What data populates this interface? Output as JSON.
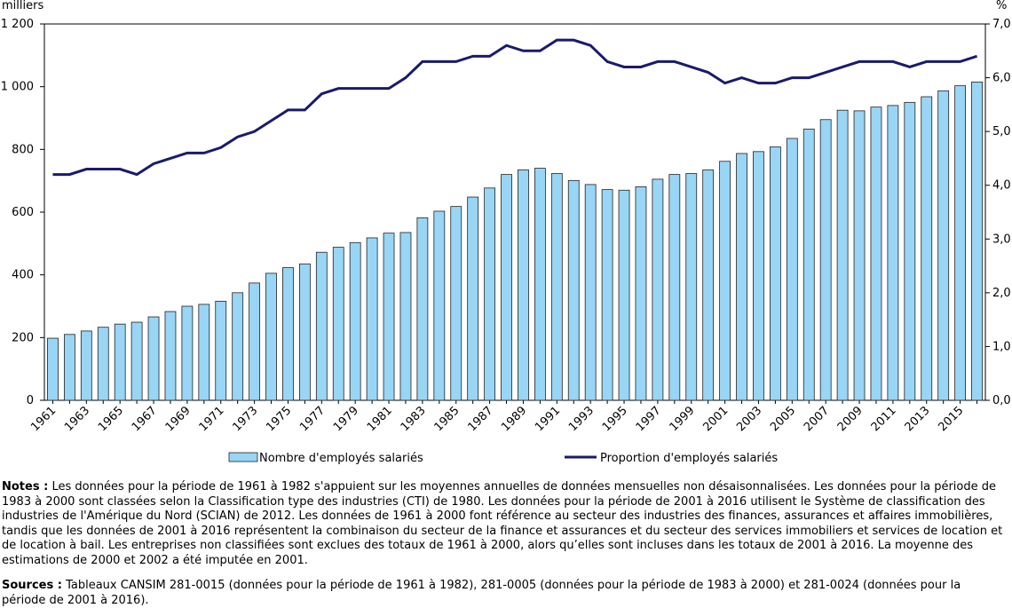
{
  "chart_data": {
    "type": "bar",
    "ylabel": "milliers",
    "y2label": "%",
    "categories": [
      "1961",
      null,
      "1963",
      null,
      "1965",
      null,
      "1967",
      null,
      "1969",
      null,
      "1971",
      null,
      "1973",
      null,
      "1975",
      null,
      "1977",
      null,
      "1979",
      null,
      "1981",
      null,
      "1983",
      null,
      "1985",
      null,
      "1987",
      null,
      "1989",
      null,
      "1991",
      null,
      "1993",
      null,
      "1995",
      null,
      "1997",
      null,
      "1999",
      null,
      "2001",
      null,
      "2003",
      null,
      "2005",
      null,
      "2007",
      null,
      "2009",
      null,
      "2011",
      null,
      "2013",
      null,
      "2015",
      null
    ],
    "series": [
      {
        "name": "Nombre d'employés salariés",
        "type": "bar",
        "axis": "y",
        "color": "#99d5f5",
        "values": [
          198,
          210,
          221,
          233,
          243,
          249,
          266,
          283,
          300,
          306,
          316,
          343,
          374,
          405,
          423,
          435,
          472,
          488,
          503,
          518,
          533,
          535,
          582,
          603,
          618,
          648,
          677,
          720,
          735,
          740,
          723,
          701,
          688,
          672,
          670,
          681,
          705,
          720,
          723,
          735,
          762,
          787,
          793,
          808,
          835,
          865,
          895,
          925,
          923,
          935,
          940,
          950,
          968,
          987,
          1003,
          1015
        ]
      },
      {
        "name": "Proportion d'employés salariés",
        "type": "line",
        "axis": "y2",
        "color": "#1a1a6e",
        "values": [
          4.2,
          4.2,
          4.3,
          4.3,
          4.3,
          4.2,
          4.4,
          4.5,
          4.6,
          4.6,
          4.7,
          4.9,
          5.0,
          5.2,
          5.4,
          5.4,
          5.7,
          5.8,
          5.8,
          5.8,
          5.8,
          6.0,
          6.3,
          6.3,
          6.3,
          6.4,
          6.4,
          6.6,
          6.5,
          6.5,
          6.7,
          6.7,
          6.6,
          6.3,
          6.2,
          6.2,
          6.3,
          6.3,
          6.2,
          6.1,
          5.9,
          6.0,
          5.9,
          5.9,
          6.0,
          6.0,
          6.1,
          6.2,
          6.3,
          6.3,
          6.3,
          6.2,
          6.3,
          6.3,
          6.3,
          6.4
        ]
      }
    ],
    "ylim": [
      0,
      1200
    ],
    "yticks": [
      0,
      200,
      400,
      600,
      800,
      {
        "value": 1000,
        "label": "1 000"
      },
      {
        "value": 1200,
        "label": "1 200"
      }
    ],
    "y2lim": [
      0,
      7
    ],
    "y2ticks": [
      {
        "value": 0,
        "label": "0,0"
      },
      {
        "value": 1,
        "label": "1,0"
      },
      {
        "value": 2,
        "label": "2,0"
      },
      {
        "value": 3,
        "label": "3,0"
      },
      {
        "value": 4,
        "label": "4,0"
      },
      {
        "value": 5,
        "label": "5,0"
      },
      {
        "value": 6,
        "label": "6,0"
      },
      {
        "value": 7,
        "label": "7,0"
      }
    ],
    "grid": false
  },
  "notes": {
    "label": "Notes :",
    "text": "Les données pour la période de 1961 à 1982 s'appuient sur les moyennes annuelles de données mensuelles non désaisonnalisées. Les données pour la période de 1983 à 2000 sont classées selon la Classification type des industries (CTI) de 1980. Les données pour la période de 2001 à 2016 utilisent le Système de classification des industries de l'Amérique du Nord (SCIAN) de 2012. Les données de 1961 à 2000 font référence au secteur des industries des finances, assurances et affaires immobilières, tandis que les données de 2001 à 2016 représentent la combinaison du secteur de la finance et assurances et du secteur des services immobiliers et services de location et de location à bail. Les entreprises non classifiées sont exclues des totaux de 1961 à 2000, alors qu’elles sont incluses dans les totaux de 2001 à 2016. La moyenne des estimations de 2000 et 2002 a été imputée en 2001."
  },
  "sources": {
    "label": "Sources :",
    "text": "Tableaux CANSIM 281-0015 (données pour la période de 1961 à 1982), 281-0005 (données pour la période de 1983 à 2000) et 281-0024 (données pour la période de 2001 à 2016)."
  }
}
